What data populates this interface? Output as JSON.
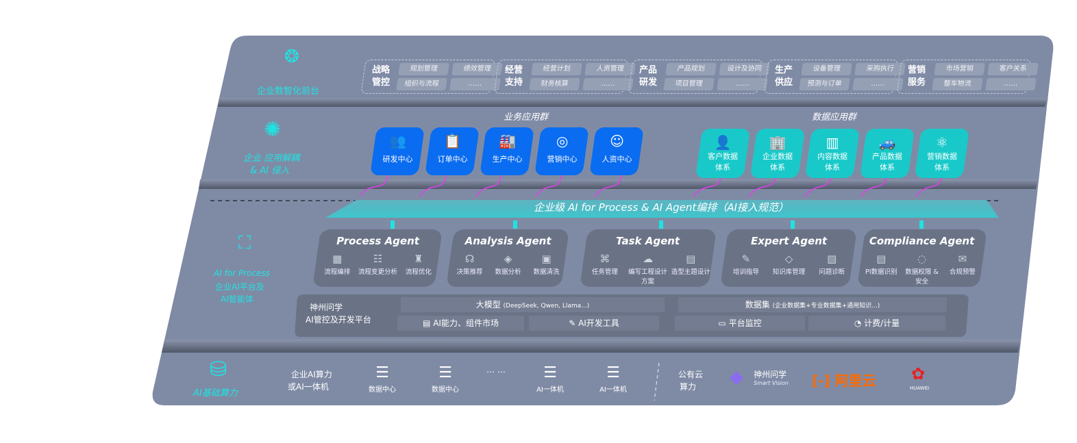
{
  "layers": {
    "front": {
      "label": "企业数智化前台",
      "icon": "brain-icon",
      "groups": [
        {
          "title": "战略管控",
          "items": [
            "规划管理",
            "绩效管理",
            "组织与流程",
            "……"
          ]
        },
        {
          "title": "经营支持",
          "items": [
            "经营计划",
            "人资管理",
            "财务核算",
            "……"
          ]
        },
        {
          "title": "产品研发",
          "items": [
            "产品规划",
            "设计及协同",
            "项目管理",
            "……"
          ]
        },
        {
          "title": "生产供应",
          "items": [
            "设备管理",
            "采购执行",
            "预测与订单",
            "……"
          ]
        },
        {
          "title": "营销服务",
          "items": [
            "市场营销",
            "客户关系",
            "整车物流",
            "……"
          ]
        }
      ]
    },
    "apps": {
      "label1": "企业 应用解耦",
      "label2": "& AI 侵入",
      "icon": "molecule-icon",
      "business_title": "业务应用群",
      "data_title": "数据应用群",
      "business": [
        {
          "label": "研发中心",
          "icon": "users-icon"
        },
        {
          "label": "订单中心",
          "icon": "clipboard-icon"
        },
        {
          "label": "生产中心",
          "icon": "factory-icon"
        },
        {
          "label": "营销中心",
          "icon": "target-icon"
        },
        {
          "label": "人资中心",
          "icon": "person-icon"
        }
      ],
      "data": [
        {
          "l1": "客户数据",
          "l2": "体系",
          "icon": "user-icon"
        },
        {
          "l1": "企业数据",
          "l2": "体系",
          "icon": "building-icon"
        },
        {
          "l1": "内容数据",
          "l2": "体系",
          "icon": "books-icon"
        },
        {
          "l1": "产品数据",
          "l2": "体系",
          "icon": "car-icon"
        },
        {
          "l1": "营销数据",
          "l2": "体系",
          "icon": "atom-icon"
        }
      ]
    },
    "ai": {
      "l1": "AI for Process",
      "l2": "企业AI平台及",
      "l3": "AI智能体",
      "icon": "face-scan-icon",
      "orchestration": "企业级 AI for Process & AI Agent编排（AI接入规范）",
      "agents": [
        {
          "title": "Process Agent",
          "items": [
            "流程编排",
            "流程变更分析",
            "流程优化"
          ]
        },
        {
          "title": "Analysis Agent",
          "items": [
            "决策推荐",
            "数据分析",
            "数据清洗"
          ]
        },
        {
          "title": "Task Agent",
          "items": [
            "任务管理",
            "编写工程设计方案",
            "造型主题设计"
          ]
        },
        {
          "title": "Expert Agent",
          "items": [
            "培训指导",
            "知识库管理",
            "问题诊断"
          ]
        },
        {
          "title": "Compliance Agent",
          "items": [
            "PI数据识别",
            "数据权限 & 安全",
            "合规预警"
          ]
        }
      ],
      "platform": {
        "title1": "神州问学",
        "title2": "AI管控及开发平台",
        "model": "大模型",
        "model_note": "(DeepSeek, Qwen, Llama...)",
        "dataset": "数据集",
        "dataset_note": "(企业数据集+专业数据集+通用知识...)",
        "tools": [
          "AI能力、组件市场",
          "AI开发工具",
          "平台监控",
          "计费/计量"
        ]
      }
    },
    "infra": {
      "label": "AI基础算力",
      "icon": "database-icon",
      "enterprise1": "企业AI算力",
      "enterprise2": "或AI一体机",
      "servers": [
        "数据中心",
        "数据中心",
        "AI一体机",
        "AI一体机"
      ],
      "ellipsis": "… …",
      "cloud1": "公有云",
      "cloud2": "算力",
      "vendors": {
        "sv1": "神州问学",
        "sv2": "Smart Vision",
        "aliyun": "阿里云",
        "huawei": "HUAWEI"
      }
    }
  },
  "colors": {
    "panel": "#7f8ba5",
    "blue": "#0a6cf0",
    "cyan": "#19c9c9",
    "accent": "#1fe3e3",
    "magenta": "#e040e8",
    "aliyun": "#ff6a00",
    "huawei": "#e8201f"
  }
}
